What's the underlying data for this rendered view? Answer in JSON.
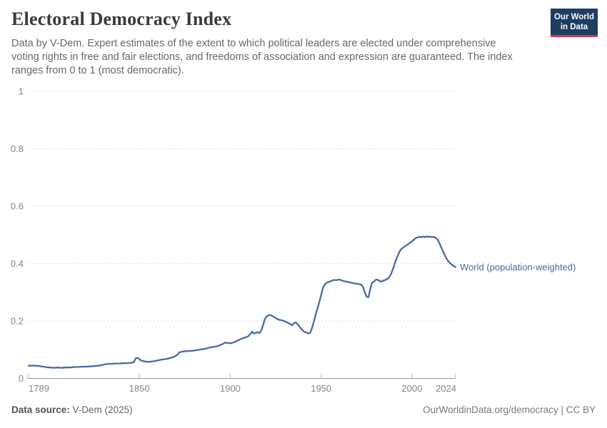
{
  "header": {
    "title": "Electoral Democracy Index",
    "subtitle_lines": [
      "Data by V-Dem. Expert estimates of the extent to which political leaders are elected under comprehensive",
      "voting rights in free and fair elections, and freedoms of association and expression are guaranteed. The index",
      "ranges from 0 to 1 (most democratic)."
    ]
  },
  "logo": {
    "line1": "Our World",
    "line2": "in Data",
    "bg_color": "#1d3d63",
    "accent_color": "#d6353f"
  },
  "footer": {
    "source_label": "Data source:",
    "source_value": "V-Dem (2025)",
    "credit": "OurWorldinData.org/democracy | CC BY"
  },
  "chart_data": {
    "type": "line",
    "title": "Electoral Democracy Index",
    "xlabel": "",
    "ylabel": "",
    "x_range": [
      1789,
      2024
    ],
    "y_range": [
      0,
      1
    ],
    "x_ticks": [
      1789,
      1850,
      1900,
      1950,
      2000,
      2024
    ],
    "y_ticks": [
      0,
      0.2,
      0.4,
      0.6,
      0.8,
      1
    ],
    "grid": "dashed-horizontal",
    "legend_position": "right-of-line-end",
    "axis_color": "#999999",
    "gridline_color": "#dcdcdc",
    "tick_label_color": "#858585",
    "series": [
      {
        "name": "World (population-weighted)",
        "color": "#4c699f",
        "points": [
          [
            1789,
            0.044
          ],
          [
            1791,
            0.045
          ],
          [
            1793,
            0.044
          ],
          [
            1795,
            0.043
          ],
          [
            1797,
            0.041
          ],
          [
            1799,
            0.039
          ],
          [
            1801,
            0.038
          ],
          [
            1803,
            0.037
          ],
          [
            1805,
            0.038
          ],
          [
            1807,
            0.037
          ],
          [
            1809,
            0.038
          ],
          [
            1811,
            0.038
          ],
          [
            1813,
            0.039
          ],
          [
            1815,
            0.04
          ],
          [
            1817,
            0.04
          ],
          [
            1819,
            0.041
          ],
          [
            1821,
            0.041
          ],
          [
            1823,
            0.042
          ],
          [
            1825,
            0.043
          ],
          [
            1827,
            0.044
          ],
          [
            1829,
            0.046
          ],
          [
            1831,
            0.049
          ],
          [
            1833,
            0.051
          ],
          [
            1835,
            0.051
          ],
          [
            1837,
            0.052
          ],
          [
            1839,
            0.052
          ],
          [
            1841,
            0.053
          ],
          [
            1843,
            0.053
          ],
          [
            1845,
            0.054
          ],
          [
            1847,
            0.057
          ],
          [
            1848,
            0.07
          ],
          [
            1849,
            0.072
          ],
          [
            1850,
            0.067
          ],
          [
            1851,
            0.062
          ],
          [
            1853,
            0.059
          ],
          [
            1855,
            0.058
          ],
          [
            1857,
            0.059
          ],
          [
            1859,
            0.061
          ],
          [
            1861,
            0.064
          ],
          [
            1863,
            0.066
          ],
          [
            1865,
            0.068
          ],
          [
            1867,
            0.071
          ],
          [
            1869,
            0.075
          ],
          [
            1871,
            0.083
          ],
          [
            1872,
            0.091
          ],
          [
            1874,
            0.094
          ],
          [
            1876,
            0.095
          ],
          [
            1878,
            0.096
          ],
          [
            1880,
            0.097
          ],
          [
            1882,
            0.099
          ],
          [
            1884,
            0.101
          ],
          [
            1886,
            0.103
          ],
          [
            1888,
            0.106
          ],
          [
            1890,
            0.109
          ],
          [
            1892,
            0.111
          ],
          [
            1894,
            0.115
          ],
          [
            1896,
            0.12
          ],
          [
            1897,
            0.125
          ],
          [
            1898,
            0.124
          ],
          [
            1900,
            0.122
          ],
          [
            1902,
            0.126
          ],
          [
            1904,
            0.132
          ],
          [
            1906,
            0.138
          ],
          [
            1908,
            0.142
          ],
          [
            1910,
            0.147
          ],
          [
            1912,
            0.163
          ],
          [
            1913,
            0.156
          ],
          [
            1914,
            0.159
          ],
          [
            1915,
            0.161
          ],
          [
            1916,
            0.158
          ],
          [
            1917,
            0.166
          ],
          [
            1918,
            0.185
          ],
          [
            1919,
            0.206
          ],
          [
            1920,
            0.216
          ],
          [
            1921,
            0.22
          ],
          [
            1922,
            0.221
          ],
          [
            1923,
            0.218
          ],
          [
            1924,
            0.214
          ],
          [
            1925,
            0.21
          ],
          [
            1926,
            0.207
          ],
          [
            1927,
            0.204
          ],
          [
            1928,
            0.203
          ],
          [
            1929,
            0.201
          ],
          [
            1930,
            0.199
          ],
          [
            1931,
            0.196
          ],
          [
            1932,
            0.193
          ],
          [
            1933,
            0.189
          ],
          [
            1934,
            0.185
          ],
          [
            1935,
            0.192
          ],
          [
            1936,
            0.195
          ],
          [
            1937,
            0.189
          ],
          [
            1938,
            0.181
          ],
          [
            1939,
            0.173
          ],
          [
            1940,
            0.166
          ],
          [
            1941,
            0.162
          ],
          [
            1942,
            0.159
          ],
          [
            1943,
            0.157
          ],
          [
            1944,
            0.159
          ],
          [
            1945,
            0.176
          ],
          [
            1946,
            0.198
          ],
          [
            1947,
            0.222
          ],
          [
            1948,
            0.245
          ],
          [
            1949,
            0.266
          ],
          [
            1950,
            0.29
          ],
          [
            1951,
            0.315
          ],
          [
            1952,
            0.328
          ],
          [
            1953,
            0.333
          ],
          [
            1954,
            0.336
          ],
          [
            1955,
            0.338
          ],
          [
            1956,
            0.34
          ],
          [
            1957,
            0.343
          ],
          [
            1958,
            0.342
          ],
          [
            1959,
            0.343
          ],
          [
            1960,
            0.344
          ],
          [
            1961,
            0.342
          ],
          [
            1962,
            0.34
          ],
          [
            1963,
            0.338
          ],
          [
            1964,
            0.337
          ],
          [
            1965,
            0.336
          ],
          [
            1966,
            0.334
          ],
          [
            1967,
            0.333
          ],
          [
            1968,
            0.331
          ],
          [
            1969,
            0.33
          ],
          [
            1970,
            0.33
          ],
          [
            1971,
            0.328
          ],
          [
            1972,
            0.327
          ],
          [
            1973,
            0.32
          ],
          [
            1974,
            0.3
          ],
          [
            1975,
            0.285
          ],
          [
            1976,
            0.283
          ],
          [
            1977,
            0.31
          ],
          [
            1978,
            0.333
          ],
          [
            1979,
            0.337
          ],
          [
            1980,
            0.343
          ],
          [
            1981,
            0.344
          ],
          [
            1982,
            0.34
          ],
          [
            1983,
            0.337
          ],
          [
            1984,
            0.34
          ],
          [
            1985,
            0.342
          ],
          [
            1986,
            0.345
          ],
          [
            1987,
            0.349
          ],
          [
            1988,
            0.358
          ],
          [
            1989,
            0.372
          ],
          [
            1990,
            0.39
          ],
          [
            1991,
            0.41
          ],
          [
            1992,
            0.425
          ],
          [
            1993,
            0.44
          ],
          [
            1994,
            0.45
          ],
          [
            1995,
            0.455
          ],
          [
            1996,
            0.46
          ],
          [
            1997,
            0.464
          ],
          [
            1998,
            0.468
          ],
          [
            1999,
            0.473
          ],
          [
            2000,
            0.477
          ],
          [
            2001,
            0.483
          ],
          [
            2002,
            0.489
          ],
          [
            2003,
            0.491
          ],
          [
            2004,
            0.493
          ],
          [
            2005,
            0.492
          ],
          [
            2006,
            0.494
          ],
          [
            2007,
            0.492
          ],
          [
            2008,
            0.495
          ],
          [
            2009,
            0.493
          ],
          [
            2010,
            0.494
          ],
          [
            2011,
            0.492
          ],
          [
            2012,
            0.493
          ],
          [
            2013,
            0.49
          ],
          [
            2014,
            0.484
          ],
          [
            2015,
            0.472
          ],
          [
            2016,
            0.458
          ],
          [
            2017,
            0.444
          ],
          [
            2018,
            0.43
          ],
          [
            2019,
            0.418
          ],
          [
            2020,
            0.408
          ],
          [
            2021,
            0.401
          ],
          [
            2022,
            0.396
          ],
          [
            2023,
            0.391
          ],
          [
            2024,
            0.388
          ]
        ]
      }
    ]
  }
}
